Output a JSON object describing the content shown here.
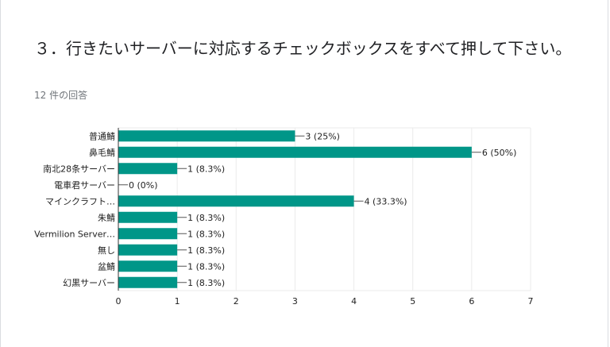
{
  "question": {
    "title": "３．行きたいサーバーに対応するチェックボックスをすべて押して下さい。",
    "response_count": "12 件の回答"
  },
  "colors": {
    "bar": "#009688",
    "grid": "#ebebeb",
    "axis": "#333333",
    "label": "#222222"
  },
  "chart_data": {
    "type": "bar",
    "orientation": "horizontal",
    "categories": [
      "普通鯖",
      "鼻毛鯖",
      "南北28条サーバー",
      "電車君サーバー",
      "マインクラフト…",
      "朱鯖",
      "Vermilion Server…",
      "無し",
      "盆鯖",
      "幻黒サーバー"
    ],
    "values": [
      3,
      6,
      1,
      0,
      4,
      1,
      1,
      1,
      1,
      1
    ],
    "value_labels": [
      "3 (25%)",
      "6 (50%)",
      "1 (8.3%)",
      "0 (0%)",
      "4 (33.3%)",
      "1 (8.3%)",
      "1 (8.3%)",
      "1 (8.3%)",
      "1 (8.3%)",
      "1 (8.3%)"
    ],
    "xlim": [
      0,
      7
    ],
    "xticks": [
      0,
      1,
      2,
      3,
      4,
      5,
      6,
      7
    ],
    "grid": true,
    "legend": "none"
  }
}
